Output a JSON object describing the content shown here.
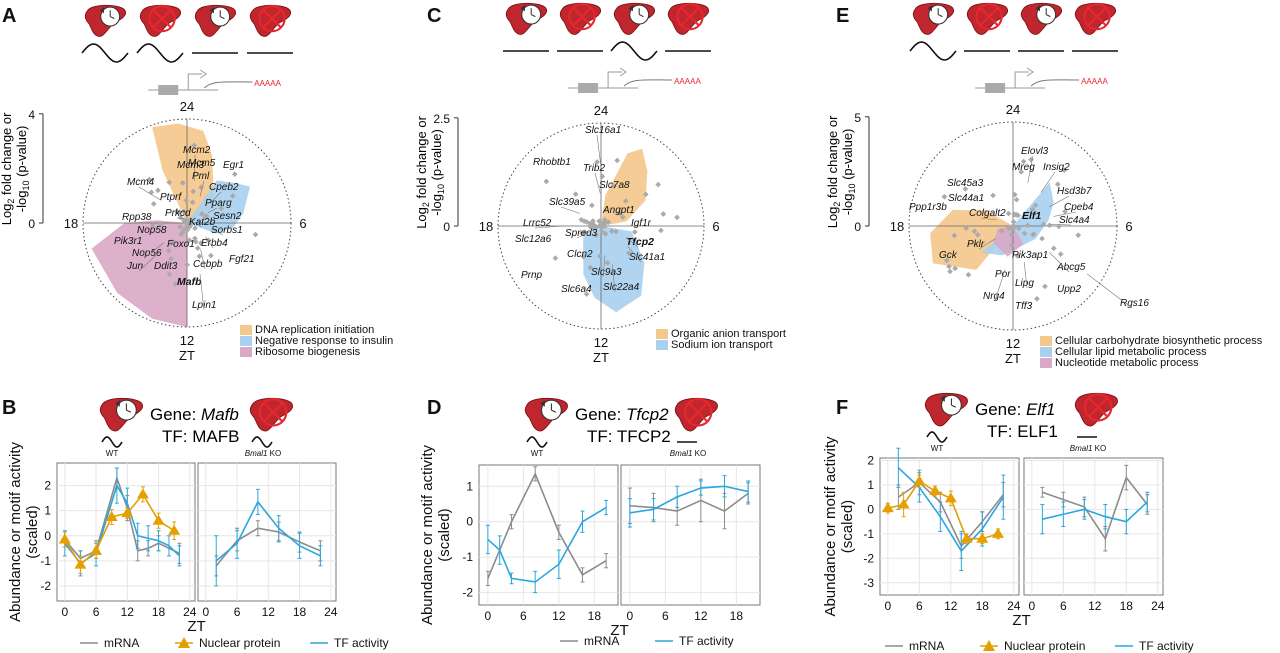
{
  "figure": {
    "panel_letters": [
      "A",
      "B",
      "C",
      "D",
      "E",
      "F"
    ],
    "mrna_label": "AAAAA",
    "radial_axis_label_1": "Log",
    "radial_axis_label_sub": "2",
    "radial_axis_label_2": " fold change or",
    "radial_axis_label_3": "-log",
    "radial_axis_label_sub2": "10",
    "radial_axis_label_4": " (p-value)",
    "zt_hours": [
      "24",
      "6",
      "12",
      "18"
    ],
    "zt_label": "ZT",
    "gene_prefix": "Gene: ",
    "tf_prefix": "TF: ",
    "wt_label": "WT",
    "ko_label_gene": "Bmal1",
    "ko_label_suffix": " KO",
    "line_ylabel_1": "Abundance or motif activity",
    "line_ylabel_2": "(scaled)",
    "legend_mrna": "mRNA",
    "legend_protein": "Nuclear protein",
    "legend_tf": "TF activity"
  },
  "colors": {
    "mrna": "#8c8c8c",
    "protein": "#e69f00",
    "tf": "#2ba6de",
    "orange_fill": "#f4c78a",
    "blue_fill": "#a9d0ee",
    "pink_fill": "#d9a9c6",
    "liver": "#c0262d",
    "red_x": "#e8262d",
    "mrna_text": "#e8262d"
  },
  "chart_data": [
    {
      "panel": "A",
      "type": "radial",
      "rmax_label": "4",
      "rzero_label": "0",
      "genes": [
        {
          "label": "Mcm2",
          "bold": false
        },
        {
          "label": "Mcm3",
          "bold": false
        },
        {
          "label": "Mcm4",
          "bold": false
        },
        {
          "label": "Mcm5",
          "bold": false
        },
        {
          "label": "Pml",
          "bold": false
        },
        {
          "label": "Egr1",
          "bold": false
        },
        {
          "label": "Cpeb2",
          "bold": false
        },
        {
          "label": "Ptprf",
          "bold": false
        },
        {
          "label": "Pparg",
          "bold": false
        },
        {
          "label": "Sesn2",
          "bold": false
        },
        {
          "label": "Prkcd",
          "bold": false
        },
        {
          "label": "Rpp38",
          "bold": false
        },
        {
          "label": "Sorbs1",
          "bold": false
        },
        {
          "label": "Nop58",
          "bold": false
        },
        {
          "label": "Kat2b",
          "bold": false
        },
        {
          "label": "Pik3r1",
          "bold": false
        },
        {
          "label": "Erbb4",
          "bold": false
        },
        {
          "label": "Fgf21",
          "bold": false
        },
        {
          "label": "Nop56",
          "bold": false
        },
        {
          "label": "Foxo1",
          "bold": false
        },
        {
          "label": "Jun",
          "bold": false
        },
        {
          "label": "Ddit3",
          "bold": false
        },
        {
          "label": "Cebpb",
          "bold": false
        },
        {
          "label": "Mafb",
          "bold": true
        },
        {
          "label": "Lpin1",
          "bold": false
        }
      ],
      "legend": [
        "DNA replication initiation",
        "Negative response to insulin",
        "Ribosome biogenesis"
      ]
    },
    {
      "panel": "C",
      "type": "radial",
      "rmax_label": "2.5",
      "rzero_label": "0",
      "genes": [
        {
          "label": "Slc16a1",
          "bold": false
        },
        {
          "label": "Rhobtb1",
          "bold": false
        },
        {
          "label": "Trib2",
          "bold": false
        },
        {
          "label": "Slc7a8",
          "bold": false
        },
        {
          "label": "Slc39a5",
          "bold": false
        },
        {
          "label": "Angpt1",
          "bold": false
        },
        {
          "label": "Lrrc52",
          "bold": false
        },
        {
          "label": "Igf1r",
          "bold": false
        },
        {
          "label": "Spred3",
          "bold": false
        },
        {
          "label": "Slc12a6",
          "bold": false
        },
        {
          "label": "Tfcp2",
          "bold": true
        },
        {
          "label": "Clcn2",
          "bold": false
        },
        {
          "label": "Slc41a1",
          "bold": false
        },
        {
          "label": "Prnp",
          "bold": false
        },
        {
          "label": "Slc9a3",
          "bold": false
        },
        {
          "label": "Slc6a4",
          "bold": false
        },
        {
          "label": "Slc22a4",
          "bold": false
        }
      ],
      "legend": [
        "Organic anion transport",
        "Sodium ion transport"
      ]
    },
    {
      "panel": "E",
      "type": "radial",
      "rmax_label": "5",
      "rzero_label": "0",
      "genes": [
        {
          "label": "Elovl3",
          "bold": false
        },
        {
          "label": "Mreg",
          "bold": false
        },
        {
          "label": "Insig2",
          "bold": false
        },
        {
          "label": "Slc45a3",
          "bold": false
        },
        {
          "label": "Hsd3b7",
          "bold": false
        },
        {
          "label": "Slc44a1",
          "bold": false
        },
        {
          "label": "Cpeb4",
          "bold": false
        },
        {
          "label": "Ppp1r3b",
          "bold": false
        },
        {
          "label": "Colgalt2",
          "bold": false
        },
        {
          "label": "Elf1",
          "bold": true
        },
        {
          "label": "Slc4a4",
          "bold": false
        },
        {
          "label": "Gck",
          "bold": false
        },
        {
          "label": "Pklr",
          "bold": false
        },
        {
          "label": "Pik3ap1",
          "bold": false
        },
        {
          "label": "Abcg5",
          "bold": false
        },
        {
          "label": "Por",
          "bold": false
        },
        {
          "label": "Lipg",
          "bold": false
        },
        {
          "label": "Upp2",
          "bold": false
        },
        {
          "label": "Nrg4",
          "bold": false
        },
        {
          "label": "Tff3",
          "bold": false
        },
        {
          "label": "Rgs16",
          "bold": false
        }
      ],
      "legend": [
        "Cellular carbohydrate biosynthetic process",
        "Cellular lipid metabolic process",
        "Nucleotide metabolic process"
      ]
    },
    {
      "panel": "B",
      "type": "line",
      "gene": "Mafb",
      "tf": "MAFB",
      "xticks": [
        0,
        6,
        12,
        18,
        24
      ],
      "yticks": [
        2,
        1,
        0,
        -1,
        -2
      ],
      "ylim": [
        -2.6,
        2.9
      ],
      "xlim": [
        -1.5,
        25
      ],
      "wt": {
        "mrna": {
          "x": [
            0,
            3,
            6,
            10,
            12,
            14,
            16,
            18,
            22
          ],
          "y": [
            -0.15,
            -0.9,
            -0.6,
            2.3,
            1.1,
            -0.6,
            -0.5,
            -0.3,
            -0.7
          ],
          "err": [
            0.3,
            0.3,
            0.3,
            0.4,
            0.5,
            0.4,
            0.3,
            0.3,
            0.4
          ]
        },
        "protein": {
          "x": [
            0,
            3,
            6,
            9,
            12,
            15,
            18,
            21
          ],
          "y": [
            -0.15,
            -1.15,
            -0.6,
            0.75,
            0.9,
            1.65,
            0.6,
            0.2
          ],
          "err": [
            0.3,
            0.35,
            0.3,
            0.3,
            0.2,
            0.3,
            0.3,
            0.35
          ]
        },
        "tf": {
          "x": [
            0,
            3,
            6,
            10,
            12,
            14,
            16,
            18,
            20,
            22
          ],
          "y": [
            -0.3,
            -1.1,
            -0.7,
            2.0,
            1.3,
            0.0,
            -0.1,
            -0.2,
            -0.4,
            -0.8
          ],
          "err": [
            0.5,
            0.5,
            0.5,
            0.7,
            0.6,
            0.5,
            0.5,
            0.4,
            0.4,
            0.4
          ]
        }
      },
      "ko": {
        "mrna": {
          "x": [
            2,
            6,
            10,
            14,
            18,
            22
          ],
          "y": [
            -1.2,
            -0.2,
            0.3,
            0.15,
            -0.25,
            -0.6
          ],
          "err": [
            0.4,
            0.4,
            0.3,
            0.4,
            0.4,
            0.4
          ]
        },
        "tf": {
          "x": [
            2,
            6,
            10,
            14,
            18,
            22
          ],
          "y": [
            -1.0,
            -0.3,
            1.35,
            0.3,
            -0.4,
            -0.8
          ],
          "err": [
            1.0,
            0.6,
            0.5,
            0.5,
            0.5,
            0.4
          ]
        }
      }
    },
    {
      "panel": "D",
      "type": "line",
      "gene": "Tfcp2",
      "tf": "TFCP2",
      "xticks": [
        0,
        6,
        12,
        18
      ],
      "yticks": [
        1,
        0,
        -1,
        -2
      ],
      "ylim": [
        -2.35,
        1.6
      ],
      "xlim": [
        -1.5,
        22
      ],
      "wt": {
        "mrna": {
          "x": [
            0,
            4,
            8,
            12,
            16,
            20
          ],
          "y": [
            -1.6,
            0.0,
            1.35,
            -0.3,
            -1.5,
            -1.1
          ],
          "err": [
            0.2,
            0.2,
            0.2,
            0.2,
            0.2,
            0.2
          ]
        },
        "tf": {
          "x": [
            0,
            2,
            4,
            8,
            12,
            16,
            20
          ],
          "y": [
            -0.5,
            -0.8,
            -1.6,
            -1.7,
            -1.2,
            0.0,
            0.4
          ],
          "err": [
            0.4,
            0.4,
            0.15,
            0.3,
            0.4,
            0.3,
            0.2
          ]
        }
      },
      "ko": {
        "mrna": {
          "x": [
            0,
            4,
            8,
            12,
            16,
            20
          ],
          "y": [
            0.45,
            0.4,
            0.3,
            0.6,
            0.3,
            0.8
          ],
          "err": [
            0.5,
            0.4,
            0.4,
            0.6,
            0.5,
            0.3
          ]
        },
        "tf": {
          "x": [
            0,
            4,
            8,
            12,
            16,
            20
          ],
          "y": [
            0.25,
            0.35,
            0.7,
            0.95,
            1.0,
            0.85
          ],
          "err": [
            0.4,
            0.3,
            0.3,
            0.2,
            0.3,
            0.3
          ]
        }
      }
    },
    {
      "panel": "F",
      "type": "line",
      "gene": "Elf1",
      "tf": "ELF1",
      "xticks": [
        0,
        6,
        12,
        18,
        24
      ],
      "yticks": [
        2,
        1,
        0,
        -1,
        -2,
        -3
      ],
      "ylim": [
        -3.5,
        2.1
      ],
      "xlim": [
        -1.5,
        25
      ],
      "wt": {
        "mrna": {
          "x": [
            2,
            6,
            10,
            14,
            18,
            22
          ],
          "y": [
            0.5,
            1.1,
            0.3,
            -1.5,
            -0.5,
            0.6
          ],
          "err": [
            0.5,
            0.5,
            0.4,
            0.5,
            0.4,
            0.5
          ]
        },
        "protein": {
          "x": [
            0,
            3,
            6,
            9,
            12,
            15,
            18,
            21
          ],
          "y": [
            0.05,
            0.2,
            1.15,
            0.75,
            0.45,
            -1.2,
            -1.2,
            -1.0
          ],
          "err": [
            0.2,
            0.5,
            0.25,
            0.2,
            0.3,
            0.2,
            0.2,
            0.2
          ]
        },
        "tf": {
          "x": [
            2,
            6,
            10,
            14,
            18,
            22
          ],
          "y": [
            1.7,
            0.9,
            -0.3,
            -1.7,
            -0.8,
            0.5
          ],
          "err": [
            0.8,
            0.6,
            0.6,
            0.8,
            0.7,
            0.9
          ]
        }
      },
      "ko": {
        "mrna": {
          "x": [
            2,
            6,
            10,
            14,
            18,
            22
          ],
          "y": [
            0.7,
            0.4,
            0.1,
            -1.2,
            1.3,
            0.2
          ],
          "err": [
            0.2,
            0.3,
            0.4,
            0.5,
            0.5,
            0.4
          ]
        },
        "tf": {
          "x": [
            2,
            6,
            10,
            14,
            18,
            22
          ],
          "y": [
            -0.4,
            -0.2,
            0.0,
            -0.3,
            -0.5,
            0.3
          ],
          "err": [
            0.6,
            0.5,
            0.4,
            0.5,
            0.5,
            0.4
          ]
        }
      }
    }
  ]
}
